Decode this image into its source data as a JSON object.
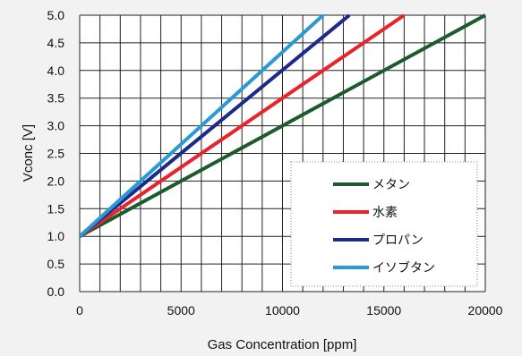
{
  "chart_data": {
    "type": "line",
    "xlabel": "Gas Concentration [ppm]",
    "ylabel": "Vconc [V]",
    "xlim": [
      0,
      20000
    ],
    "ylim": [
      0.0,
      5.0
    ],
    "x_ticks": [
      0,
      5000,
      10000,
      15000,
      20000
    ],
    "x_tick_labels": [
      "0",
      "5000",
      "10000",
      "15000",
      "20000"
    ],
    "y_ticks": [
      0.0,
      0.5,
      1.0,
      1.5,
      2.0,
      2.5,
      3.0,
      3.5,
      4.0,
      4.5,
      5.0
    ],
    "y_tick_labels": [
      "0.0",
      "0.5",
      "1.0",
      "1.5",
      "2.0",
      "2.5",
      "3.0",
      "3.5",
      "4.0",
      "4.5",
      "5.0"
    ],
    "x_minor_step": 1000,
    "grid": true,
    "legend_position": "bottom-right",
    "series": [
      {
        "name": "メタン",
        "color": "#1d5a2e",
        "x": [
          0,
          20000
        ],
        "y": [
          1.0,
          5.0
        ]
      },
      {
        "name": "水素",
        "color": "#e8232a",
        "x": [
          0,
          16000
        ],
        "y": [
          1.0,
          5.0
        ]
      },
      {
        "name": "プロパン",
        "color": "#1c2a8a",
        "x": [
          0,
          13300
        ],
        "y": [
          1.0,
          5.0
        ]
      },
      {
        "name": "イソブタン",
        "color": "#2a9ad6",
        "x": [
          0,
          12000
        ],
        "y": [
          1.0,
          5.0
        ]
      }
    ]
  }
}
